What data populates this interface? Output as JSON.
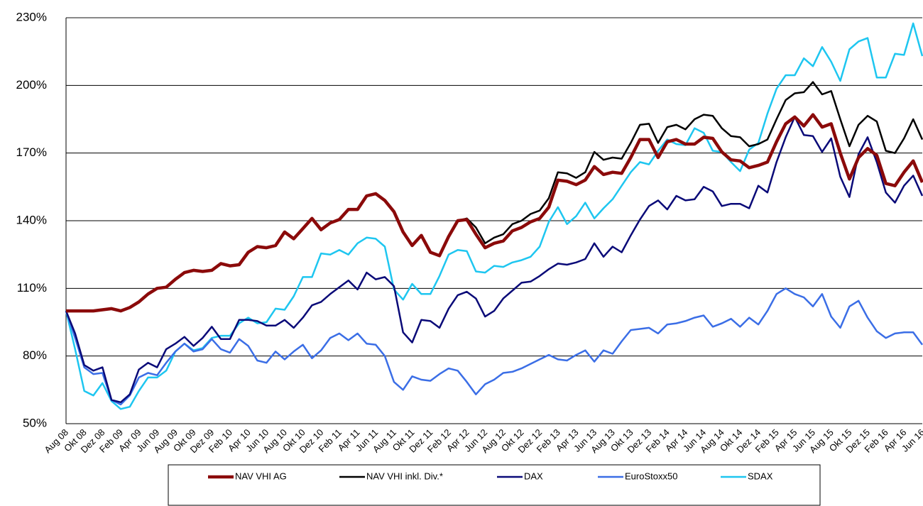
{
  "chart_data": {
    "type": "line",
    "categories": [
      "Aug 08",
      null,
      "Okt 08",
      null,
      "Dez 08",
      null,
      "Feb 09",
      null,
      "Apr 09",
      null,
      "Jun 09",
      null,
      "Aug 09",
      null,
      "Okt 09",
      null,
      "Dez 09",
      null,
      "Feb 10",
      null,
      "Apr 10",
      null,
      "Jun 10",
      null,
      "Aug 10",
      null,
      "Okt 10",
      null,
      "Dez 10",
      null,
      "Feb 11",
      null,
      "Apr 11",
      null,
      "Jun 11",
      null,
      "Aug 11",
      null,
      "Okt 11",
      null,
      "Dez 11",
      null,
      "Feb 12",
      null,
      "Apr 12",
      null,
      "Jun 12",
      null,
      "Aug 12",
      null,
      "Okt 12",
      null,
      "Dez 12",
      null,
      "Feb 13",
      null,
      "Apr 13",
      null,
      "Jun 13",
      null,
      "Aug 13",
      null,
      "Okt 13",
      null,
      "Dez 13",
      null,
      "Feb 14",
      null,
      "Apr 14",
      null,
      "Jun 14",
      null,
      "Aug 14",
      null,
      "Okt 14",
      null,
      "Dez 14",
      null,
      "Feb 15",
      null,
      "Apr 15",
      null,
      "Jun 15",
      null,
      "Aug 15",
      null,
      "Okt 15",
      null,
      "Dez 15",
      null,
      "Feb 16",
      null,
      "Apr 16",
      null,
      "Jun 16"
    ],
    "ylim": [
      50,
      230
    ],
    "yticks": [
      {
        "value": 50,
        "label": "50%"
      },
      {
        "value": 80,
        "label": "80%"
      },
      {
        "value": 110,
        "label": "110%"
      },
      {
        "value": 140,
        "label": "140%"
      },
      {
        "value": 170,
        "label": "170%"
      },
      {
        "value": 200,
        "label": "200%"
      },
      {
        "value": 230,
        "label": "230%"
      }
    ],
    "grid": true,
    "series": [
      {
        "name": "NAV VHI AG",
        "color": "#8b0a0a",
        "values": [
          100,
          100,
          100,
          100,
          100.5,
          101,
          100,
          101.5,
          104,
          107.5,
          110,
          110.5,
          114,
          117,
          118,
          117.5,
          118,
          121,
          120,
          120.5,
          126,
          128.5,
          128,
          129,
          135,
          132,
          136.5,
          141,
          136,
          139,
          140.5,
          145,
          145,
          151,
          152,
          149,
          144,
          135,
          129,
          133.5,
          126,
          124.5,
          133,
          140,
          140.5,
          134,
          128,
          130,
          131,
          135.5,
          137,
          139.5,
          141,
          146,
          158,
          157.5,
          156,
          158,
          164,
          160.5,
          161.5,
          161,
          168,
          176,
          176,
          168,
          175,
          176,
          174,
          174,
          177,
          176.5,
          170.5,
          167,
          166.5,
          163.5,
          164.5,
          166,
          175,
          183,
          186,
          182,
          187,
          181.5,
          183,
          170,
          158.5,
          168,
          172,
          169,
          156.5,
          155.5,
          161.5,
          166.5,
          157
        ]
      },
      {
        "name": "NAV VHI inkl. Div.*",
        "color": "#000000",
        "values": [
          100,
          100,
          100,
          100,
          100.5,
          101,
          100,
          101.5,
          104,
          107.5,
          110,
          110.5,
          114,
          117,
          118,
          117.5,
          118,
          121,
          120,
          120.5,
          126,
          128.5,
          128,
          129,
          135,
          132,
          136.5,
          141,
          136,
          139,
          140.5,
          145,
          145,
          151,
          152,
          149,
          144,
          135,
          129,
          133.5,
          126,
          124.5,
          133,
          140,
          141,
          137,
          130,
          132.5,
          134,
          138.5,
          140,
          143,
          144.5,
          150,
          161.5,
          161,
          159,
          161.5,
          170.5,
          167,
          168,
          167.5,
          174.5,
          182.5,
          183,
          174.5,
          181.5,
          182.5,
          180.5,
          185,
          187,
          186.5,
          181,
          177.5,
          177,
          173,
          174,
          176,
          185,
          193.5,
          196.5,
          197,
          201.5,
          196,
          197.5,
          185,
          173,
          182.5,
          186.5,
          184,
          171,
          170,
          176.5,
          185,
          176
        ]
      },
      {
        "name": "DAX",
        "color": "#0a0a78",
        "values": [
          100,
          90,
          76,
          73.5,
          75,
          60.5,
          59.5,
          63,
          74,
          77,
          75,
          83,
          85.5,
          88.5,
          84.5,
          88,
          93,
          87.5,
          87.5,
          96,
          96,
          95.5,
          93.5,
          93.5,
          96,
          92.5,
          97,
          102.5,
          104,
          107.5,
          110.5,
          113.5,
          109.5,
          117,
          114,
          115,
          111,
          90.5,
          86,
          96,
          95.5,
          92.5,
          101,
          107,
          108.5,
          105.5,
          97.5,
          100,
          105.5,
          109,
          112.5,
          113,
          115.5,
          118.5,
          121,
          120.5,
          121.5,
          123,
          130,
          124,
          128.5,
          126,
          133.5,
          140.5,
          146.5,
          149,
          145,
          151,
          149,
          149.5,
          155,
          153,
          146.5,
          147.5,
          147.5,
          145.5,
          155.5,
          152.5,
          166,
          177,
          186,
          178,
          177.5,
          170.5,
          176.5,
          159.5,
          150.5,
          169.5,
          177,
          166,
          152.5,
          148,
          155.5,
          160,
          151
        ]
      },
      {
        "name": "EuroStoxx50",
        "color": "#3b6ee6",
        "values": [
          100,
          88,
          75,
          72,
          72.5,
          60.5,
          58.5,
          62.5,
          70.5,
          72.5,
          71.5,
          77,
          82,
          85.5,
          82,
          83,
          87.5,
          83,
          81.5,
          87.5,
          84.5,
          78,
          77,
          82,
          78.5,
          82,
          85,
          79,
          82.5,
          88,
          90,
          87,
          90,
          85.5,
          85,
          80,
          68.5,
          65,
          71,
          69.5,
          69,
          72,
          74.5,
          73.5,
          68.5,
          63,
          67.5,
          69.5,
          72.5,
          73,
          74.5,
          76.5,
          78.5,
          80.5,
          78.5,
          78,
          80.5,
          82.5,
          77.5,
          82.5,
          81,
          86.5,
          91.5,
          92,
          92.5,
          90,
          94,
          94.5,
          95.5,
          97,
          98,
          93,
          94.5,
          96.5,
          93,
          97,
          94,
          100,
          107.5,
          110,
          107.5,
          106,
          102,
          107.5,
          97.5,
          92.5,
          102,
          104.5,
          97,
          91,
          88,
          90,
          90.5,
          90.5,
          85
        ]
      },
      {
        "name": "SDAX",
        "color": "#1ec6f0",
        "values": [
          100,
          83,
          64.5,
          62.5,
          68,
          60,
          56.5,
          57.5,
          64.5,
          70.5,
          70.5,
          73.5,
          82,
          85.5,
          82.5,
          83.5,
          88,
          89,
          89,
          94.5,
          97,
          94.5,
          95,
          101,
          100.5,
          106.5,
          115,
          115,
          125.5,
          125,
          127,
          125,
          130,
          132.5,
          132,
          128.5,
          109.5,
          105,
          112,
          107.5,
          107.5,
          115.5,
          125,
          127,
          126.5,
          117.5,
          117,
          120,
          119.5,
          121.5,
          122.5,
          124,
          128.5,
          139.5,
          146,
          138.5,
          142,
          148,
          141,
          145.5,
          149.5,
          155.5,
          161.5,
          166,
          165,
          171,
          176,
          174,
          173.5,
          181,
          179,
          171,
          170.5,
          166,
          162,
          171.5,
          174.5,
          187.5,
          198.5,
          204.5,
          204.5,
          212,
          208.5,
          217,
          210.5,
          202,
          216,
          219.5,
          221,
          203.5,
          203.5,
          214,
          213.5,
          227.5,
          213
        ]
      }
    ]
  }
}
